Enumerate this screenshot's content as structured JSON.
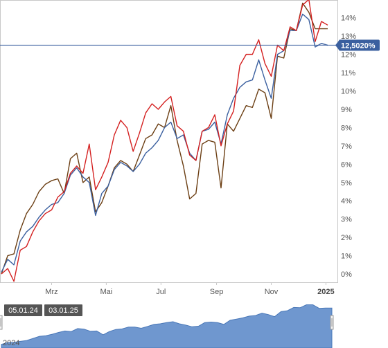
{
  "chart_data": {
    "type": "line",
    "y_unit": "%",
    "ylim": [
      -0.4,
      15.1
    ],
    "y_ticks": [
      {
        "v": 0,
        "label": "0%"
      },
      {
        "v": 1,
        "label": "1%"
      },
      {
        "v": 2,
        "label": "2%"
      },
      {
        "v": 3,
        "label": "3%"
      },
      {
        "v": 4,
        "label": "4%"
      },
      {
        "v": 5,
        "label": "5%"
      },
      {
        "v": 6,
        "label": "6%"
      },
      {
        "v": 7,
        "label": "7%"
      },
      {
        "v": 8,
        "label": "8%"
      },
      {
        "v": 9,
        "label": "9%"
      },
      {
        "v": 10,
        "label": "10%"
      },
      {
        "v": 11,
        "label": "11%"
      },
      {
        "v": 12,
        "label": "12%"
      },
      {
        "v": 13,
        "label": "13%"
      },
      {
        "v": 14,
        "label": "14%"
      }
    ],
    "x_range": [
      "2024-01-05",
      "2025-01-03"
    ],
    "x_ticks": [
      {
        "date": "2024-03-01",
        "label": "Mrz",
        "bold": false
      },
      {
        "date": "2024-05-01",
        "label": "Mai",
        "bold": false
      },
      {
        "date": "2024-07-01",
        "label": "Jul",
        "bold": false
      },
      {
        "date": "2024-09-01",
        "label": "Sep",
        "bold": false
      },
      {
        "date": "2024-11-01",
        "label": "Nov",
        "bold": false
      },
      {
        "date": "2025-01-01",
        "label": "2025",
        "bold": true
      }
    ],
    "x": [
      "2024-01-05",
      "2024-01-12",
      "2024-01-19",
      "2024-01-26",
      "2024-02-02",
      "2024-02-09",
      "2024-02-16",
      "2024-02-23",
      "2024-03-01",
      "2024-03-08",
      "2024-03-15",
      "2024-03-22",
      "2024-03-29",
      "2024-04-05",
      "2024-04-12",
      "2024-04-19",
      "2024-04-26",
      "2024-05-03",
      "2024-05-10",
      "2024-05-17",
      "2024-05-24",
      "2024-05-31",
      "2024-06-07",
      "2024-06-14",
      "2024-06-21",
      "2024-06-28",
      "2024-07-05",
      "2024-07-12",
      "2024-07-19",
      "2024-07-26",
      "2024-08-02",
      "2024-08-09",
      "2024-08-16",
      "2024-08-23",
      "2024-08-30",
      "2024-09-06",
      "2024-09-13",
      "2024-09-20",
      "2024-09-27",
      "2024-10-04",
      "2024-10-11",
      "2024-10-18",
      "2024-10-25",
      "2024-11-01",
      "2024-11-08",
      "2024-11-15",
      "2024-11-22",
      "2024-11-29",
      "2024-12-06",
      "2024-12-13",
      "2024-12-20",
      "2024-12-27",
      "2025-01-03"
    ],
    "series": [
      {
        "color": "#d42020",
        "values": [
          0.0,
          0.3,
          -0.4,
          1.3,
          1.5,
          2.3,
          2.9,
          3.3,
          3.5,
          4.2,
          4.5,
          5.5,
          5.9,
          5.5,
          7.1,
          4.6,
          5.3,
          6.1,
          7.6,
          8.4,
          8.0,
          6.7,
          7.7,
          8.8,
          9.3,
          9.0,
          9.4,
          9.7,
          8.1,
          7.8,
          6.5,
          6.2,
          7.8,
          8.0,
          8.7,
          7.0,
          8.2,
          8.9,
          11.4,
          12.0,
          12.0,
          12.8,
          11.5,
          10.8,
          12.5,
          12.2,
          13.5,
          13.3,
          14.7,
          15.0,
          12.7,
          13.8,
          13.6
        ]
      },
      {
        "color": "#3a5f9f",
        "values": [
          0.1,
          0.8,
          0.5,
          1.8,
          2.3,
          2.6,
          3.1,
          3.5,
          3.8,
          3.9,
          4.4,
          5.4,
          5.8,
          5.3,
          5.0,
          3.2,
          4.4,
          4.8,
          5.7,
          6.1,
          5.9,
          5.6,
          6.0,
          6.6,
          6.9,
          7.3,
          8.0,
          8.3,
          7.4,
          7.6,
          6.6,
          6.2,
          7.8,
          7.9,
          8.3,
          7.1,
          8.7,
          9.6,
          10.2,
          10.5,
          10.6,
          11.7,
          10.6,
          9.6,
          12.0,
          12.2,
          13.3,
          13.3,
          14.2,
          13.9,
          12.4,
          12.6,
          12.5
        ]
      },
      {
        "color": "#6b3e13",
        "values": [
          0.0,
          1.0,
          1.1,
          2.4,
          3.3,
          3.8,
          4.5,
          4.9,
          5.1,
          5.2,
          4.4,
          6.3,
          6.6,
          5.0,
          5.3,
          3.4,
          3.9,
          4.8,
          5.8,
          6.2,
          6.0,
          5.6,
          6.5,
          7.4,
          7.6,
          8.2,
          8.0,
          9.2,
          7.3,
          5.9,
          4.1,
          4.4,
          7.1,
          7.3,
          7.2,
          4.7,
          8.2,
          7.8,
          8.5,
          9.2,
          9.1,
          10.1,
          9.9,
          8.5,
          11.9,
          11.8,
          13.4,
          13.3,
          14.8,
          14.3,
          13.4,
          13.4,
          13.4
        ]
      }
    ],
    "marker_line": {
      "value": 12.502,
      "label": "12,5020%",
      "color": "#3a5f9f"
    },
    "grid": false,
    "legend": "none"
  },
  "navigator": {
    "range_start": "05.01.24",
    "range_end": "03.01.25",
    "year_label": "2024",
    "values": [
      0.3,
      0.9,
      1.0,
      1.3,
      1.6,
      2.3,
      3.0,
      3.2,
      3.7,
      4.3,
      4.8,
      4.6,
      5.6,
      5.4,
      4.7,
      4.8,
      3.5,
      4.6,
      5.3,
      5.5,
      6.1,
      6.1,
      5.7,
      6.3,
      7.0,
      7.2,
      7.6,
      7.9,
      7.2,
      6.8,
      6.2,
      6.4,
      7.6,
      7.8,
      7.6,
      7.0,
      8.4,
      8.8,
      9.2,
      9.8,
      10.0,
      10.8,
      10.3,
      9.6,
      11.3,
      11.6,
      12.7,
      12.6,
      13.6,
      13.6,
      12.4,
      12.5,
      12.5
    ],
    "fill_color": "#6f97cf",
    "line_color": "#4a78b8"
  }
}
